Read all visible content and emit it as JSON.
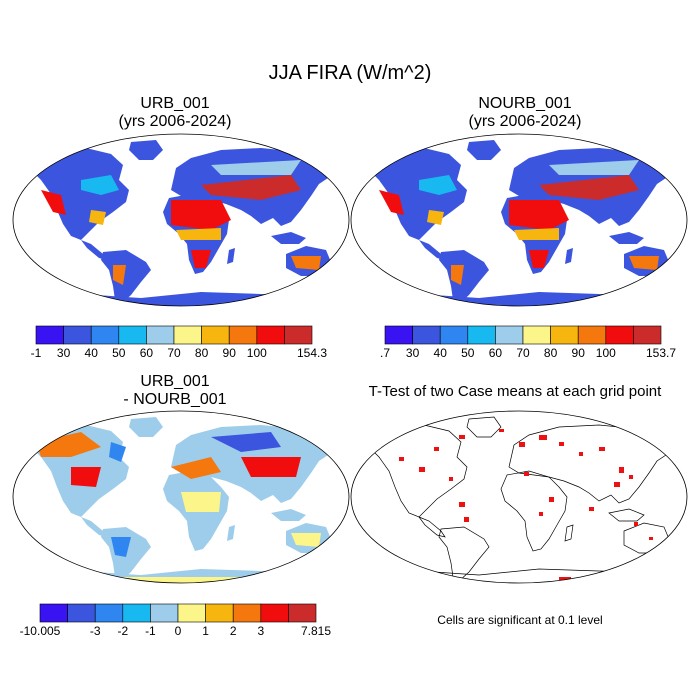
{
  "title": "JJA FIRA (W/m^2)",
  "panels": [
    {
      "title_line1": "URB_001",
      "title_line2": "(yrs 2006-2024)",
      "colorbar": {
        "labels": [
          "-1",
          "30",
          "40",
          "50",
          "60",
          "70",
          "80",
          "90",
          "100",
          "154.3"
        ]
      }
    },
    {
      "title_line1": "NOURB_001",
      "title_line2": "(yrs 2006-2024)",
      "colorbar": {
        "labels": [
          ".7",
          "30",
          "40",
          "50",
          "60",
          "70",
          "80",
          "90",
          "100",
          "153.7"
        ]
      }
    },
    {
      "title_line1": "URB_001",
      "title_line2": "- NOURB_001",
      "colorbar": {
        "labels": [
          "-10.005",
          "-3",
          "-2",
          "-1",
          "0",
          "1",
          "2",
          "3",
          "7.815"
        ]
      }
    },
    {
      "title_line1": "T-Test of two Case means at each grid point",
      "note": "Cells are significant at 0.1 level"
    }
  ],
  "colors": {
    "scale": [
      "#3a13f2",
      "#3b55df",
      "#2f86f0",
      "#17b9f0",
      "#9dcdea",
      "#fcf58a",
      "#f6b60f",
      "#f4780e",
      "#f10d0d",
      "#cc2b2b"
    ],
    "diff_scale": [
      "#3a13f2",
      "#3b55df",
      "#2f86f0",
      "#17b9f0",
      "#9dcdea",
      "#fcf58a",
      "#f6b60f",
      "#f4780e",
      "#f10d0d",
      "#cc2b2b"
    ],
    "significant": "#ee1111"
  }
}
